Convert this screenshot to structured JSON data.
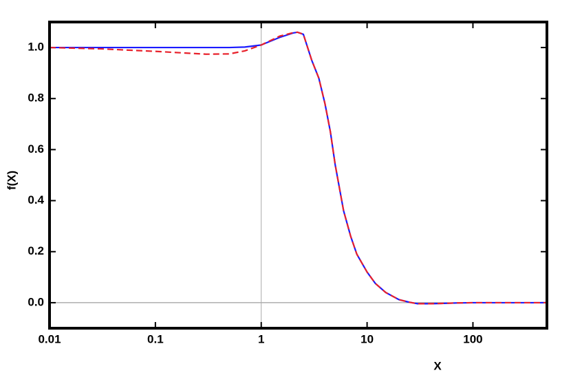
{
  "chart_data": {
    "type": "line",
    "xlabel": "X",
    "ylabel": "f(X)",
    "xscale": "log",
    "x": [
      0.01,
      0.03,
      0.1,
      0.3,
      0.5,
      0.7,
      1,
      1.5,
      2,
      2.2,
      2.5,
      3,
      3.5,
      4,
      4.5,
      5,
      6,
      7,
      8,
      10,
      12,
      15,
      20,
      25,
      30,
      40,
      50,
      70,
      100,
      200,
      500
    ],
    "series": [
      {
        "color": "#1a1aff",
        "dash": false,
        "values": [
          1.0,
          1.0,
          1.0,
          1.0,
          1.0,
          1.002,
          1.01,
          1.04,
          1.057,
          1.06,
          1.052,
          0.95,
          0.88,
          0.78,
          0.67,
          0.54,
          0.36,
          0.26,
          0.19,
          0.12,
          0.075,
          0.04,
          0.012,
          0.002,
          -0.004,
          -0.004,
          -0.003,
          -0.001,
          0,
          0,
          0
        ]
      },
      {
        "color": "#e8202a",
        "dash": true,
        "values": [
          1.0,
          0.995,
          0.985,
          0.974,
          0.975,
          0.987,
          1.01,
          1.045,
          1.058,
          1.06,
          1.052,
          0.95,
          0.88,
          0.78,
          0.67,
          0.54,
          0.36,
          0.26,
          0.19,
          0.12,
          0.075,
          0.04,
          0.012,
          0.002,
          -0.004,
          -0.004,
          -0.003,
          -0.001,
          0,
          0,
          0
        ]
      }
    ],
    "xlim": [
      0.01,
      500
    ],
    "ylim": [
      -0.1,
      1.1
    ],
    "xticks": [
      0.01,
      0.1,
      1,
      10,
      100
    ],
    "yticks": [
      {
        "value": 0,
        "label": "0.0"
      },
      0.2,
      0.4,
      0.6,
      0.8,
      {
        "value": 1,
        "label": "1.0"
      }
    ]
  }
}
